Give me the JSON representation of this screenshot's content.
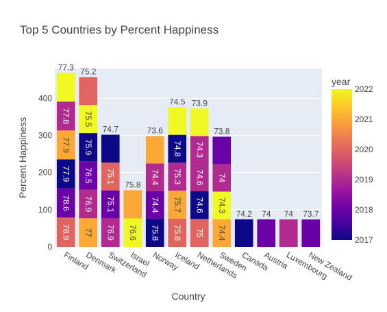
{
  "chart_data": {
    "type": "bar",
    "stacked": true,
    "title": "Top 5 Countries by Percent Happiness",
    "xlabel": "Country",
    "ylabel": "Percent Happiness",
    "ylim": [
      0,
      480
    ],
    "yticks": [
      0,
      100,
      200,
      300,
      400
    ],
    "categories": [
      "Finland",
      "Denmark",
      "Switzerland",
      "Israel",
      "Norway",
      "Iceland",
      "Netherlands",
      "Sweden",
      "Canada",
      "Austria",
      "Luxembourg",
      "New Zealand"
    ],
    "stacks": [
      {
        "category": "Finland",
        "total": "77.3",
        "segments": [
          {
            "year": 2020,
            "value": 78.9,
            "label": "78.9"
          },
          {
            "year": 2018,
            "value": 78.6,
            "label": "78.6"
          },
          {
            "year": 2017,
            "value": 77.9,
            "label": "77.9"
          },
          {
            "year": 2021,
            "value": 77.9,
            "label": "77.9"
          },
          {
            "year": 2019,
            "value": 77.8,
            "label": "77.8"
          },
          {
            "year": 2022,
            "value": 77.3,
            "label": ""
          }
        ]
      },
      {
        "category": "Denmark",
        "total": "75.2",
        "segments": [
          {
            "year": 2021,
            "value": 77.0,
            "label": "77"
          },
          {
            "year": 2019,
            "value": 76.9,
            "label": "76.9"
          },
          {
            "year": 2018,
            "value": 76.5,
            "label": "76.5"
          },
          {
            "year": 2017,
            "value": 75.9,
            "label": "75.9"
          },
          {
            "year": 2022,
            "value": 75.5,
            "label": "75.5"
          },
          {
            "year": 2020,
            "value": 75.2,
            "label": ""
          }
        ]
      },
      {
        "category": "Switzerland",
        "total": "74.7",
        "segments": [
          {
            "year": 2019,
            "value": 76.9,
            "label": "76.9"
          },
          {
            "year": 2018,
            "value": 75.1,
            "label": "75.1"
          },
          {
            "year": 2020,
            "value": 75.1,
            "label": "75.1"
          },
          {
            "year": 2017,
            "value": 74.7,
            "label": ""
          }
        ]
      },
      {
        "category": "Israel",
        "total": "75.8",
        "segments": [
          {
            "year": 2022,
            "value": 76.6,
            "label": "76.6"
          },
          {
            "year": 2021,
            "value": 75.8,
            "label": ""
          }
        ]
      },
      {
        "category": "Norway",
        "total": "73.6",
        "segments": [
          {
            "year": 2017,
            "value": 75.8,
            "label": "75.8"
          },
          {
            "year": 2018,
            "value": 74.4,
            "label": "74.4"
          },
          {
            "year": 2019,
            "value": 74.4,
            "label": "74.4"
          },
          {
            "year": 2021,
            "value": 73.6,
            "label": ""
          }
        ]
      },
      {
        "category": "Iceland",
        "total": "74.5",
        "segments": [
          {
            "year": 2020,
            "value": 75.8,
            "label": "75.8"
          },
          {
            "year": 2021,
            "value": 75.7,
            "label": "75.7"
          },
          {
            "year": 2019,
            "value": 75.3,
            "label": "75.3"
          },
          {
            "year": 2017,
            "value": 74.8,
            "label": "74.8"
          },
          {
            "year": 2022,
            "value": 74.5,
            "label": ""
          }
        ]
      },
      {
        "category": "Netherlands",
        "total": "73.9",
        "segments": [
          {
            "year": 2020,
            "value": 75.0,
            "label": "75"
          },
          {
            "year": 2017,
            "value": 74.6,
            "label": "74.6"
          },
          {
            "year": 2019,
            "value": 74.6,
            "label": "74.6"
          },
          {
            "year": 2019,
            "value": 74.3,
            "label": "74.3"
          },
          {
            "year": 2022,
            "value": 73.9,
            "label": ""
          }
        ]
      },
      {
        "category": "Sweden",
        "total": "73.8",
        "segments": [
          {
            "year": 2021,
            "value": 74.4,
            "label": "74.4"
          },
          {
            "year": 2022,
            "value": 74.3,
            "label": "74.3"
          },
          {
            "year": 2019,
            "value": 74.0,
            "label": "74"
          },
          {
            "year": 2018,
            "value": 73.8,
            "label": ""
          }
        ]
      },
      {
        "category": "Canada",
        "total": "74.2",
        "segments": [
          {
            "year": 2017,
            "value": 74.2,
            "label": ""
          }
        ]
      },
      {
        "category": "Austria",
        "total": "74",
        "segments": [
          {
            "year": 2018,
            "value": 74.0,
            "label": ""
          }
        ]
      },
      {
        "category": "Luxembourg",
        "total": "74",
        "segments": [
          {
            "year": 2019,
            "value": 74.0,
            "label": ""
          }
        ]
      },
      {
        "category": "New Zealand",
        "total": "73.7",
        "segments": [
          {
            "year": 2018,
            "value": 73.7,
            "label": ""
          }
        ]
      }
    ],
    "colorbar": {
      "title": "year",
      "min": 2017,
      "max": 2022,
      "ticks": [
        "2022",
        "2021",
        "2020",
        "2019",
        "2018",
        "2017"
      ],
      "colorscale": [
        "#0d0887",
        "#46039f",
        "#7201a8",
        "#9c179e",
        "#bd3786",
        "#d8576b",
        "#ed7953",
        "#fb9f3a",
        "#fdca26",
        "#f0f921"
      ]
    },
    "plot_bgcolor": "#e5ecf6",
    "grid": true,
    "legend": "right colorbar"
  }
}
